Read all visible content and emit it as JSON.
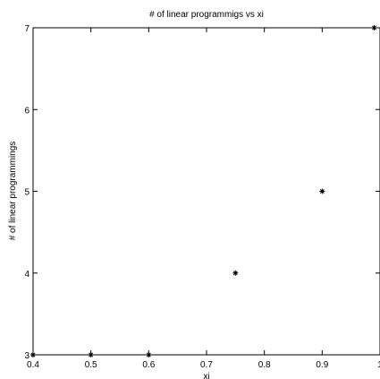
{
  "chart_data": {
    "type": "scatter",
    "title": "# of linear programmigs vs xi",
    "xlabel": "xi",
    "ylabel": "# of linear programmings",
    "xlim": [
      0.4,
      1
    ],
    "ylim": [
      3,
      7
    ],
    "xticks": [
      "0.4",
      "0.5",
      "0.6",
      "0.7",
      "0.8",
      "0.9",
      "1"
    ],
    "yticks": [
      "3",
      "4",
      "5",
      "6",
      "7"
    ],
    "grid": false,
    "marker": "asterisk",
    "color": "#000000",
    "points": [
      {
        "x": 0.4,
        "y": 3
      },
      {
        "x": 0.5,
        "y": 3
      },
      {
        "x": 0.6,
        "y": 3
      },
      {
        "x": 0.75,
        "y": 4
      },
      {
        "x": 0.9,
        "y": 5
      },
      {
        "x": 0.99,
        "y": 7
      }
    ]
  }
}
